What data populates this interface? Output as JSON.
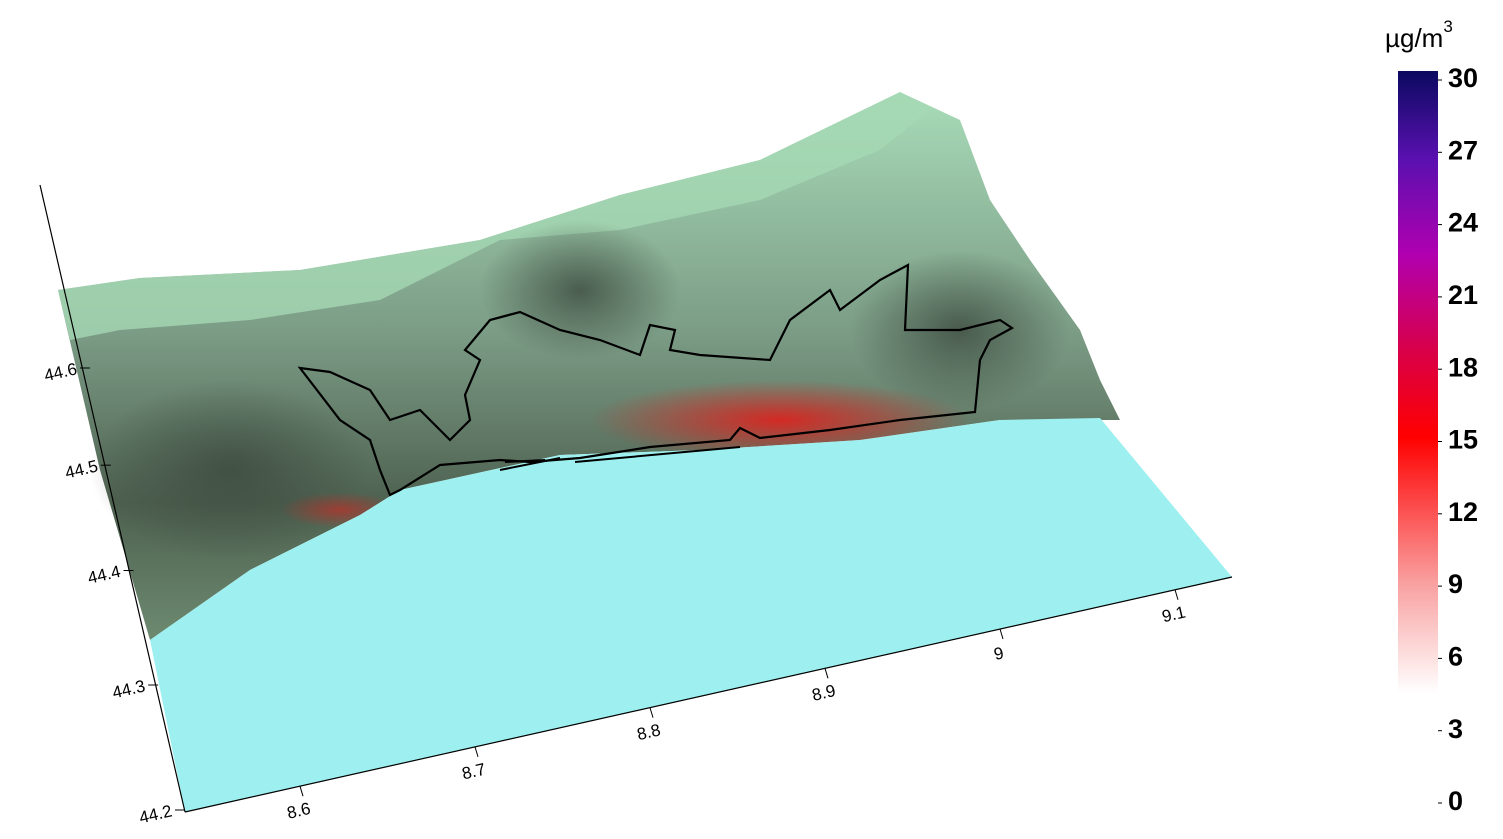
{
  "map": {
    "x_axis": {
      "ticks": [
        8.6,
        8.7,
        8.8,
        8.9,
        9,
        9.1
      ]
    },
    "y_axis": {
      "ticks": [
        44.2,
        44.3,
        44.4,
        44.5,
        44.6
      ]
    },
    "colorbar": {
      "unit": "µg/m",
      "unit_exponent": "3",
      "ticks": [
        0,
        3,
        6,
        9,
        12,
        15,
        18,
        21,
        24,
        27,
        30
      ]
    }
  }
}
